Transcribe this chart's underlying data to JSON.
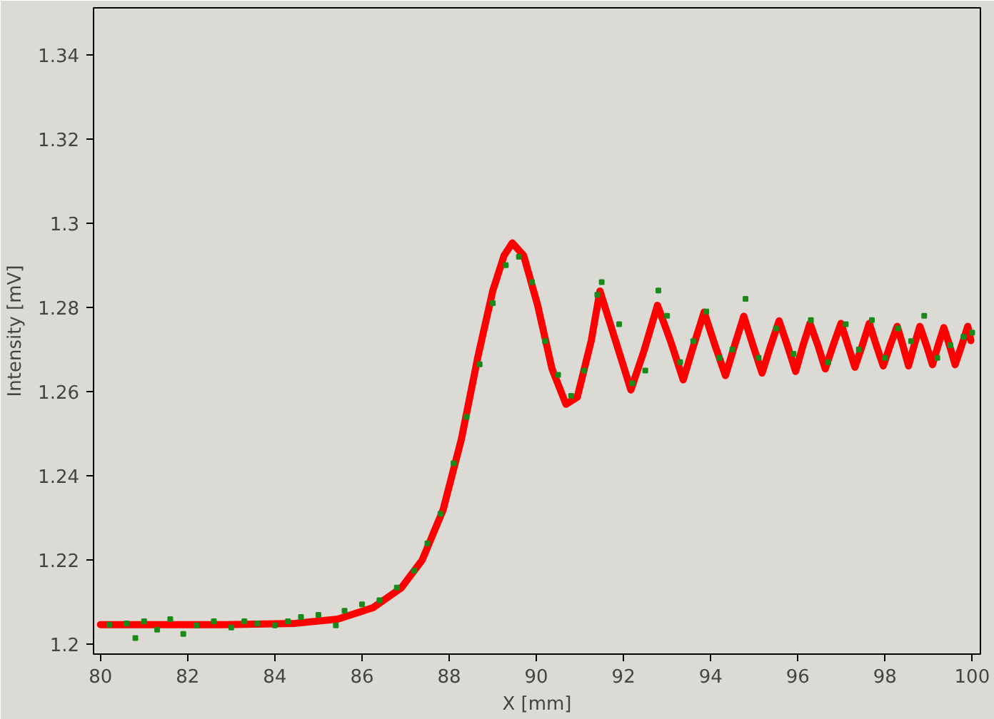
{
  "chart_data": {
    "type": "line",
    "xlabel": "X [mm]",
    "ylabel": "Intensity [mV]",
    "xlim": [
      79.84,
      100.19
    ],
    "ylim": [
      1.1977,
      1.3511
    ],
    "xticks": [
      80,
      82,
      84,
      86,
      88,
      90,
      92,
      94,
      96,
      98,
      100
    ],
    "yticks": [
      1.2,
      1.22,
      1.24,
      1.26,
      1.28,
      1.3,
      1.32,
      1.34
    ],
    "grid": false,
    "series": [
      {
        "type": "scatter",
        "marker": "square",
        "color": "#1a8a1a",
        "x": [
          80.2,
          80.6,
          80.8,
          81.0,
          81.3,
          81.6,
          81.9,
          82.2,
          82.6,
          83.0,
          83.3,
          83.6,
          84.0,
          84.3,
          84.6,
          85.0,
          85.4,
          85.6,
          86.0,
          86.4,
          86.8,
          87.2,
          87.5,
          87.8,
          88.1,
          88.4,
          88.7,
          89.0,
          89.3,
          89.6,
          89.9,
          90.2,
          90.5,
          90.8,
          91.1,
          91.4,
          91.5,
          91.9,
          92.2,
          92.5,
          92.8,
          93.0,
          93.3,
          93.6,
          93.9,
          94.2,
          94.5,
          94.8,
          95.1,
          95.5,
          95.9,
          96.3,
          96.7,
          97.1,
          97.4,
          97.7,
          98.0,
          98.3,
          98.6,
          98.9,
          99.2,
          99.5,
          99.8,
          100.0
        ],
        "values": [
          1.2047,
          1.205,
          1.2015,
          1.2055,
          1.2035,
          1.206,
          1.2025,
          1.2045,
          1.2055,
          1.204,
          1.2055,
          1.205,
          1.2045,
          1.2055,
          1.2065,
          1.207,
          1.2045,
          1.208,
          1.2095,
          1.2105,
          1.2135,
          1.2175,
          1.224,
          1.231,
          1.243,
          1.254,
          1.2665,
          1.281,
          1.29,
          1.292,
          1.286,
          1.272,
          1.264,
          1.259,
          1.265,
          1.283,
          1.286,
          1.276,
          1.262,
          1.265,
          1.284,
          1.278,
          1.267,
          1.272,
          1.279,
          1.268,
          1.27,
          1.282,
          1.268,
          1.275,
          1.269,
          1.277,
          1.267,
          1.276,
          1.27,
          1.277,
          1.268,
          1.275,
          1.272,
          1.278,
          1.268,
          1.271,
          1.273,
          1.274
        ]
      },
      {
        "color": "#ff0000",
        "x": [
          80,
          82.85,
          84.47,
          85.44,
          86.25,
          86.9,
          87.38,
          87.86,
          88.28,
          88.67,
          89.0,
          89.26,
          89.45,
          89.71,
          90.03,
          90.36,
          90.68,
          90.94,
          91.26,
          91.46,
          91.82,
          92.17,
          92.48,
          92.78,
          93.08,
          93.37,
          93.61,
          93.85,
          94.1,
          94.34,
          94.55,
          94.76,
          94.97,
          95.18,
          95.38,
          95.57,
          95.76,
          95.95,
          96.12,
          96.28,
          96.46,
          96.63,
          96.81,
          96.99,
          97.15,
          97.31,
          97.48,
          97.64,
          97.8,
          97.96,
          98.12,
          98.28,
          98.41,
          98.54,
          98.67,
          98.8,
          98.95,
          99.09,
          99.22,
          99.35,
          99.48,
          99.61,
          99.76,
          99.9,
          99.97
        ],
        "values": [
          1.2047,
          1.2047,
          1.205,
          1.206,
          1.2087,
          1.2134,
          1.22,
          1.2319,
          1.2487,
          1.2688,
          1.2839,
          1.2923,
          1.2953,
          1.2923,
          1.2805,
          1.2654,
          1.257,
          1.2587,
          1.2721,
          1.2839,
          1.272,
          1.2604,
          1.27,
          1.2805,
          1.272,
          1.2628,
          1.271,
          1.2789,
          1.271,
          1.2638,
          1.271,
          1.2779,
          1.271,
          1.2644,
          1.271,
          1.2768,
          1.271,
          1.2648,
          1.271,
          1.2762,
          1.271,
          1.2654,
          1.271,
          1.2762,
          1.271,
          1.2658,
          1.271,
          1.2762,
          1.271,
          1.2661,
          1.271,
          1.2755,
          1.271,
          1.2661,
          1.271,
          1.2755,
          1.271,
          1.2664,
          1.271,
          1.2752,
          1.271,
          1.2664,
          1.271,
          1.2755,
          1.2721
        ]
      }
    ]
  }
}
